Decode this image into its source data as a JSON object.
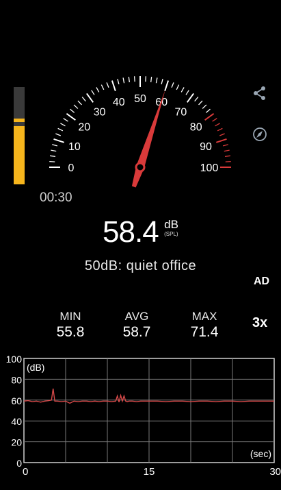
{
  "meter": {
    "level_fraction": 0.6,
    "peak_fraction": 0.64
  },
  "gauge": {
    "min": 0,
    "max": 100,
    "needle_value": 60,
    "tick_labels": [
      "0",
      "10",
      "20",
      "30",
      "40",
      "50",
      "60",
      "70",
      "80",
      "90",
      "100"
    ],
    "accent": "#d93a3a",
    "tick_color": "#ffffff",
    "danger_from": 80
  },
  "timer": "00:30",
  "reading": {
    "value": "58.4",
    "unit": "dB",
    "unit_sub": "(SPL)"
  },
  "description": "50dB: quiet office",
  "sidebar": {
    "ad_label": "AD",
    "speed_label": "3x",
    "share_icon": "share-icon",
    "compass_icon": "compass-icon"
  },
  "stats": {
    "min_label": "MIN",
    "min_value": "55.8",
    "avg_label": "AVG",
    "avg_value": "58.7",
    "max_label": "MAX",
    "max_value": "71.4"
  },
  "chart_data": {
    "type": "line",
    "ylabel": "(dB)",
    "xlabel": "(sec)",
    "y_ticks": [
      "100",
      "80",
      "60",
      "40",
      "20",
      "0"
    ],
    "x_ticks": [
      "0",
      "15",
      "30"
    ],
    "ylim": [
      0,
      100
    ],
    "xlim": [
      0,
      30
    ],
    "grid": true,
    "line_color": "#d94a4a",
    "series": [
      {
        "x": [
          0,
          0.5,
          1,
          1.5,
          2,
          2.5,
          3,
          3.3,
          3.5,
          3.7,
          4,
          4.5,
          5,
          5.5,
          6,
          6.5,
          7,
          7.5,
          8,
          8.5,
          9,
          9.5,
          10,
          10.5,
          11,
          11.2,
          11.4,
          11.6,
          11.8,
          12,
          12.2,
          12.4,
          12.6,
          13,
          13.5,
          14,
          15,
          16,
          17,
          18,
          19,
          20,
          21,
          22,
          23,
          24,
          25,
          26,
          27,
          28,
          29,
          30
        ],
        "y": [
          59,
          59.5,
          58.5,
          59,
          58,
          59,
          59.5,
          60,
          71,
          59,
          59,
          58.5,
          59,
          57,
          59,
          58.5,
          59,
          59,
          58.5,
          59,
          58.5,
          59,
          59,
          58.5,
          59,
          64,
          58,
          64.5,
          59,
          64,
          59,
          58.5,
          59,
          59,
          58.5,
          59,
          59,
          59,
          58.5,
          59,
          59,
          58.5,
          59,
          59,
          58.5,
          59,
          59,
          58.5,
          59,
          59,
          59,
          59
        ]
      }
    ]
  }
}
